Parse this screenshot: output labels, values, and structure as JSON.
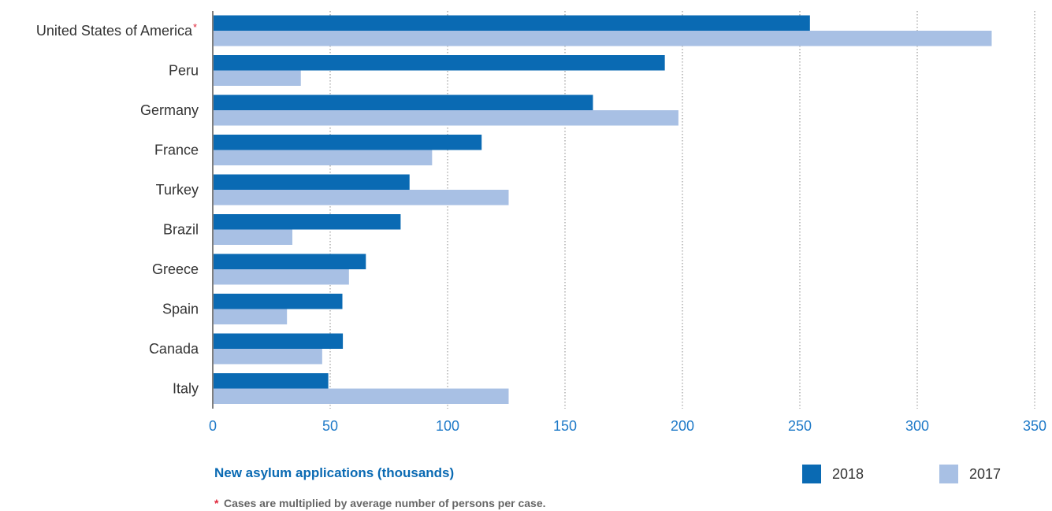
{
  "chart_data": {
    "type": "bar",
    "orientation": "horizontal",
    "categories": [
      "United States of America",
      "Peru",
      "Germany",
      "France",
      "Turkey",
      "Brazil",
      "Greece",
      "Spain",
      "Canada",
      "Italy"
    ],
    "category_marks": [
      "*",
      "",
      "",
      "",
      "",
      "",
      "",
      "",
      "",
      ""
    ],
    "series": [
      {
        "name": "2018",
        "values": [
          254.3,
          192.5,
          161.9,
          114.5,
          83.8,
          80.0,
          65.2,
          55.2,
          55.4,
          49.2
        ],
        "color": "#0a6ab3"
      },
      {
        "name": "2017",
        "values": [
          331.7,
          37.5,
          198.3,
          93.4,
          126.0,
          33.9,
          58.0,
          31.6,
          46.6,
          126.0
        ],
        "color": "#a8c0e4"
      }
    ],
    "xlabel": "New asylum applications (thousands)",
    "xlim": [
      0,
      350
    ],
    "xticks": [
      "0",
      "50",
      "100",
      "150",
      "200",
      "250",
      "300",
      "350"
    ],
    "xtick_values": [
      0,
      50,
      100,
      150,
      200,
      250,
      300,
      350
    ],
    "grid": "vertical dotted",
    "legend_position": "bottom-right",
    "footnote": {
      "marker": "*",
      "text": "Cases are multiplied by average number of persons per case."
    },
    "colors": {
      "axis_text": "#1f7ac8",
      "xlabel": "#0a6ab3",
      "asterisk": "#e0263a",
      "grid": "#888888",
      "axis_line": "#555555"
    }
  }
}
